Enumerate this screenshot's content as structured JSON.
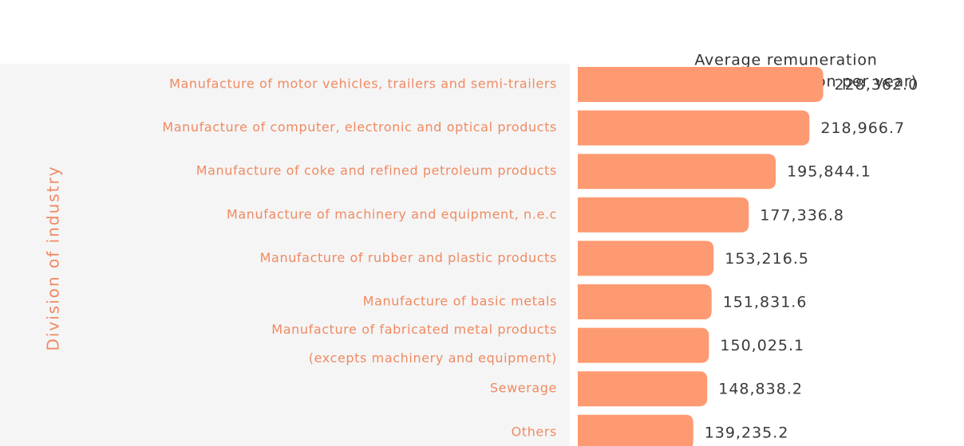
{
  "chart_data": {
    "type": "bar",
    "orientation": "horizontal",
    "title": [
      "Average remuneration",
      "(Unit: baht per person per year)"
    ],
    "ylabel": "Division of industry",
    "categories": [
      "Manufacture of motor vehicles, trailers and semi-trailers",
      "Manufacture of computer, electronic and optical products",
      "Manufacture of coke and refined petroleum products",
      "Manufacture of machinery and equipment, n.e.c",
      "Manufacture of rubber and plastic products",
      "Manufacture of basic metals",
      [
        "Manufacture of fabricated metal products",
        "(excepts machinery and equipment)"
      ],
      "Sewerage",
      "Others"
    ],
    "values": [
      228362.0,
      218966.7,
      195844.1,
      177336.8,
      153216.5,
      151831.6,
      150025.1,
      148838.2,
      139235.2
    ],
    "value_labels": [
      "228,362.0",
      "218,966.7",
      "195,844.1",
      "177,336.8",
      "153,216.5",
      "151,831.6",
      "150,025.1",
      "148,838.2",
      "139,235.2"
    ],
    "color": "#fe9a72",
    "xlim": [
      60000,
      325000
    ]
  }
}
